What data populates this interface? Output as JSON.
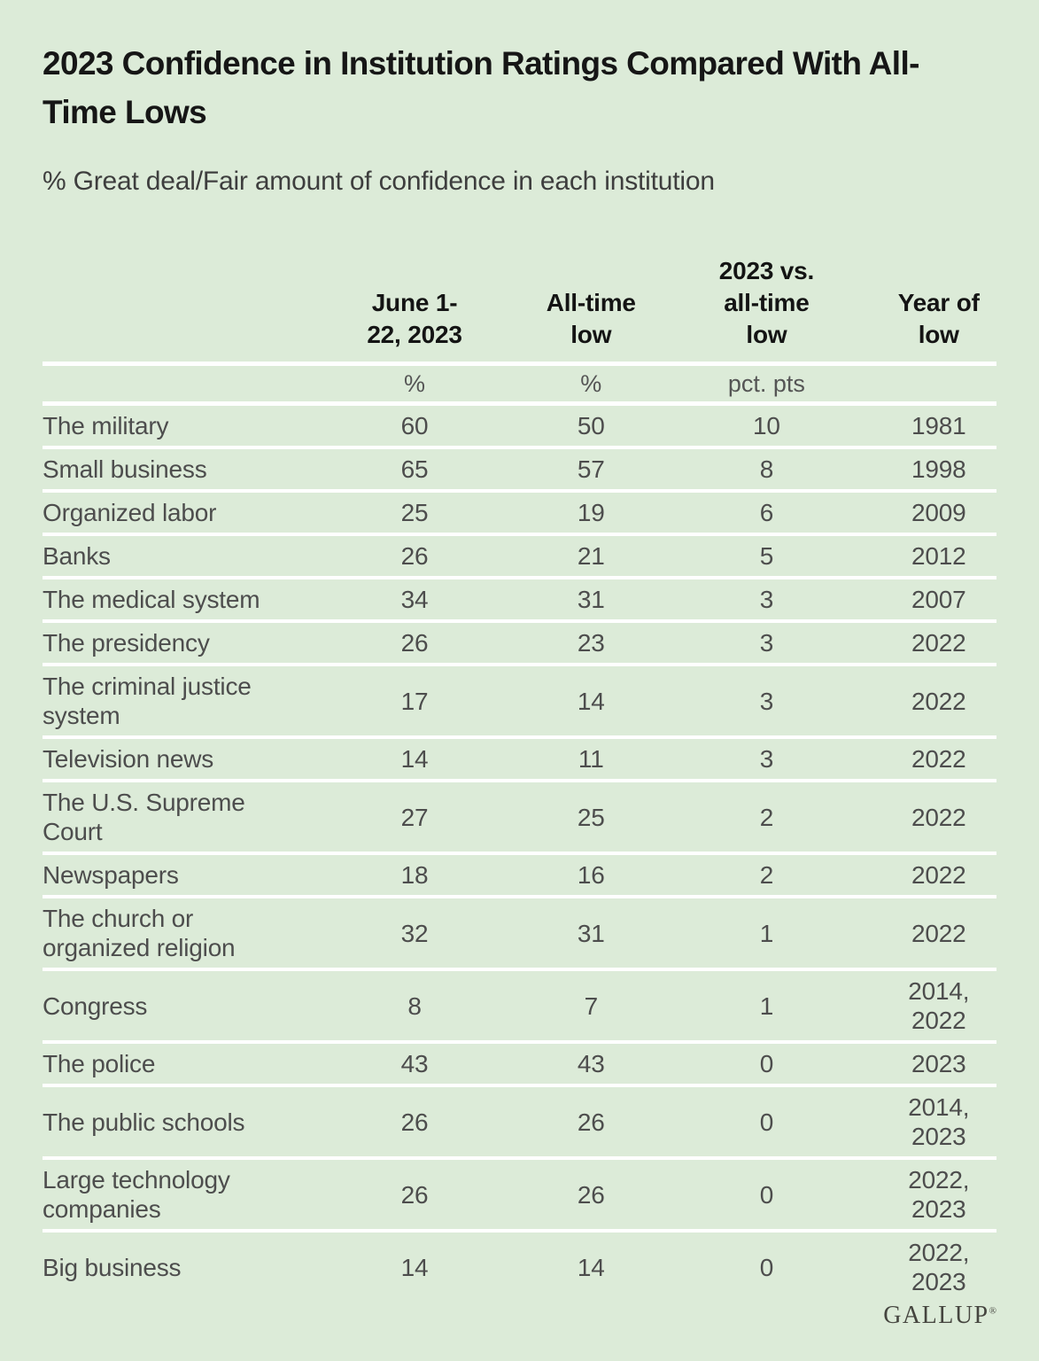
{
  "colors": {
    "background": "#dcebd8",
    "separator": "#ffffff",
    "title_text": "#161616",
    "body_text": "#4d4d4d"
  },
  "header": {
    "title": "2023 Confidence in Institution Ratings Compared With All-Time Lows",
    "title_lines": [
      "2023 Confidence in Institution Ratings Compared With All-",
      "Time Lows"
    ],
    "subtitle": "% Great deal/Fair amount of confidence in each institution"
  },
  "table": {
    "columns": [
      {
        "label": "",
        "unit": ""
      },
      {
        "label": "June 1-\n22, 2023",
        "unit": "%"
      },
      {
        "label": "All-time\nlow",
        "unit": "%"
      },
      {
        "label": "2023 vs.\nall-time\nlow",
        "unit": "pct. pts"
      },
      {
        "label": "Year of\nlow",
        "unit": ""
      }
    ],
    "rows": [
      {
        "institution": "The military",
        "june_2023": "60",
        "all_time_low": "50",
        "vs_low": "10",
        "year_of_low": "1981"
      },
      {
        "institution": "Small business",
        "june_2023": "65",
        "all_time_low": "57",
        "vs_low": "8",
        "year_of_low": "1998"
      },
      {
        "institution": "Organized labor",
        "june_2023": "25",
        "all_time_low": "19",
        "vs_low": "6",
        "year_of_low": "2009"
      },
      {
        "institution": "Banks",
        "june_2023": "26",
        "all_time_low": "21",
        "vs_low": "5",
        "year_of_low": "2012"
      },
      {
        "institution": "The medical system",
        "june_2023": "34",
        "all_time_low": "31",
        "vs_low": "3",
        "year_of_low": "2007"
      },
      {
        "institution": "The presidency",
        "june_2023": "26",
        "all_time_low": "23",
        "vs_low": "3",
        "year_of_low": "2022"
      },
      {
        "institution": "The criminal justice system",
        "june_2023": "17",
        "all_time_low": "14",
        "vs_low": "3",
        "year_of_low": "2022"
      },
      {
        "institution": "Television news",
        "june_2023": "14",
        "all_time_low": "11",
        "vs_low": "3",
        "year_of_low": "2022"
      },
      {
        "institution": "The U.S. Supreme Court",
        "june_2023": "27",
        "all_time_low": "25",
        "vs_low": "2",
        "year_of_low": "2022"
      },
      {
        "institution": "Newspapers",
        "june_2023": "18",
        "all_time_low": "16",
        "vs_low": "2",
        "year_of_low": "2022"
      },
      {
        "institution": "The church or organized religion",
        "june_2023": "32",
        "all_time_low": "31",
        "vs_low": "1",
        "year_of_low": "2022"
      },
      {
        "institution": "Congress",
        "june_2023": "8",
        "all_time_low": "7",
        "vs_low": "1",
        "year_of_low": "2014,\n2022"
      },
      {
        "institution": "The police",
        "june_2023": "43",
        "all_time_low": "43",
        "vs_low": "0",
        "year_of_low": "2023"
      },
      {
        "institution": "The public schools",
        "june_2023": "26",
        "all_time_low": "26",
        "vs_low": "0",
        "year_of_low": "2014,\n2023"
      },
      {
        "institution": "Large technology companies",
        "june_2023": "26",
        "all_time_low": "26",
        "vs_low": "0",
        "year_of_low": "2022,\n2023"
      },
      {
        "institution": "Big business",
        "june_2023": "14",
        "all_time_low": "14",
        "vs_low": "0",
        "year_of_low": "2022,\n2023"
      }
    ]
  },
  "footer": {
    "brand": "GALLUP",
    "registered_mark": "®"
  },
  "chart_data": {
    "type": "table",
    "title": "2023 Confidence in Institution Ratings Compared With All-Time Lows",
    "subtitle": "% Great deal/Fair amount of confidence in each institution",
    "categories": [
      "The military",
      "Small business",
      "Organized labor",
      "Banks",
      "The medical system",
      "The presidency",
      "The criminal justice system",
      "Television news",
      "The U.S. Supreme Court",
      "Newspapers",
      "The church or organized religion",
      "Congress",
      "The police",
      "The public schools",
      "Large technology companies",
      "Big business"
    ],
    "series": [
      {
        "name": "June 1-22, 2023",
        "unit": "%",
        "values": [
          60,
          65,
          25,
          26,
          34,
          26,
          17,
          14,
          27,
          18,
          32,
          8,
          43,
          26,
          26,
          14
        ]
      },
      {
        "name": "All-time low",
        "unit": "%",
        "values": [
          50,
          57,
          19,
          21,
          31,
          23,
          14,
          11,
          25,
          16,
          31,
          7,
          43,
          26,
          26,
          14
        ]
      },
      {
        "name": "2023 vs. all-time low",
        "unit": "pct. pts",
        "values": [
          10,
          8,
          6,
          5,
          3,
          3,
          3,
          3,
          2,
          2,
          1,
          1,
          0,
          0,
          0,
          0
        ]
      },
      {
        "name": "Year of low",
        "unit": "",
        "values": [
          "1981",
          "1998",
          "2009",
          "2012",
          "2007",
          "2022",
          "2022",
          "2022",
          "2022",
          "2022",
          "2022",
          "2014, 2022",
          "2023",
          "2014, 2023",
          "2022, 2023",
          "2022, 2023"
        ]
      }
    ],
    "source_brand": "GALLUP"
  }
}
